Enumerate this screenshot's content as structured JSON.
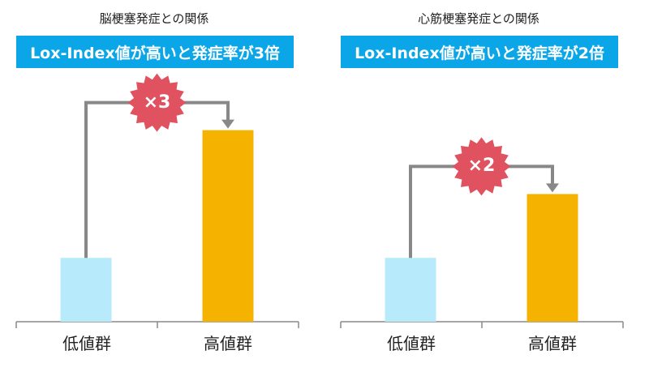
{
  "colors": {
    "banner": "#0aa6e8",
    "low_bar": "#b7ebfc",
    "high_bar": "#f5b300",
    "connector": "#888888",
    "burst": "#e05260",
    "axis": "#888888"
  },
  "chart_data": [
    {
      "type": "bar",
      "title": "脳梗塞発症との関係",
      "subtitle": "Lox-Index値が高いと発症率が3倍",
      "categories": [
        "低値群",
        "高値群"
      ],
      "values": [
        1,
        3
      ],
      "ylim": [
        0,
        3.3
      ],
      "annotation": "×3",
      "grid": false
    },
    {
      "type": "bar",
      "title": "心筋梗塞発症との関係",
      "subtitle": "Lox-Index値が高いと発症率が2倍",
      "categories": [
        "低値群",
        "高値群"
      ],
      "values": [
        1,
        2
      ],
      "ylim": [
        0,
        3.3
      ],
      "annotation": "×2",
      "grid": false
    }
  ]
}
